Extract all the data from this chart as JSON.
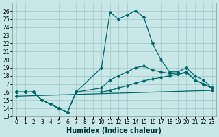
{
  "xlabel": "Humidex (Indice chaleur)",
  "background_color": "#c8e8e8",
  "grid_color": "#a8cccc",
  "line_color": "#006666",
  "xlim": [
    -0.5,
    23.5
  ],
  "ylim": [
    13,
    27
  ],
  "yticks": [
    13,
    14,
    15,
    16,
    17,
    18,
    19,
    20,
    21,
    22,
    23,
    24,
    25,
    26
  ],
  "xticks": [
    0,
    1,
    2,
    3,
    4,
    5,
    6,
    7,
    8,
    9,
    10,
    11,
    12,
    13,
    14,
    15,
    16,
    17,
    18,
    19,
    20,
    21,
    22,
    23
  ],
  "lines": [
    {
      "x": [
        0,
        1,
        2,
        3,
        4,
        5,
        6,
        7,
        10,
        11,
        12,
        13,
        14,
        15,
        16,
        17,
        18,
        19,
        20,
        21,
        22,
        23
      ],
      "y": [
        16,
        16,
        16,
        15,
        14.5,
        14,
        13.5,
        16,
        19,
        25.8,
        25,
        25.5,
        26,
        25.2,
        22,
        20,
        18.5,
        18.5,
        19,
        18,
        17.5,
        16.5
      ]
    },
    {
      "x": [
        0,
        1,
        2,
        3,
        4,
        5,
        6,
        7,
        10,
        11,
        12,
        13,
        14,
        15,
        16,
        17,
        18,
        19,
        20,
        21,
        22,
        23
      ],
      "y": [
        16,
        16,
        16,
        15,
        14.5,
        14,
        13.5,
        16,
        16.5,
        17.5,
        18.0,
        18.5,
        19.0,
        19.2,
        18.7,
        18.5,
        18.3,
        18.2,
        18.5,
        17.5,
        17.0,
        16.5
      ]
    },
    {
      "x": [
        0,
        1,
        2,
        3,
        4,
        5,
        6,
        7,
        10,
        11,
        12,
        13,
        14,
        15,
        16,
        17,
        18,
        19,
        20,
        21,
        22,
        23
      ],
      "y": [
        16,
        16,
        16,
        15,
        14.5,
        14,
        13.5,
        16,
        16.0,
        16.2,
        16.5,
        16.8,
        17.1,
        17.4,
        17.6,
        17.8,
        18.0,
        18.2,
        18.4,
        17.5,
        17.0,
        16.5
      ]
    },
    {
      "x": [
        0,
        23
      ],
      "y": [
        15.5,
        16.2
      ]
    }
  ]
}
